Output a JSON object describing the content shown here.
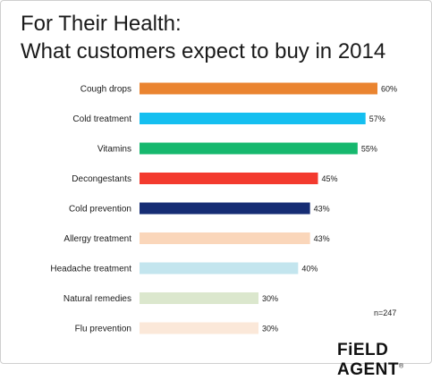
{
  "title_line1": "For Their Health:",
  "title_line2": "What customers expect to buy in 2014",
  "sample_size": "n=247",
  "logo_text": "FiELD AGENT",
  "logo_mark": "®",
  "chart_data": {
    "type": "bar",
    "orientation": "horizontal",
    "categories": [
      "Cough drops",
      "Cold treatment",
      "Vitamins",
      "Decongestants",
      "Cold prevention",
      "Allergy treatment",
      "Headache treatment",
      "Natural remedies",
      "Flu prevention"
    ],
    "values": [
      60,
      57,
      55,
      45,
      43,
      43,
      40,
      30,
      30
    ],
    "value_labels": [
      "60%",
      "57%",
      "55%",
      "45%",
      "43%",
      "43%",
      "40%",
      "30%",
      "30%"
    ],
    "colors": [
      "#ea8430",
      "#15bff0",
      "#16b86e",
      "#f33a2e",
      "#162d74",
      "#fad6ba",
      "#c3e5ee",
      "#dbe7cd",
      "#fbe8d9"
    ],
    "title": "For Their Health: What customers expect to buy in 2014",
    "xlabel": "",
    "ylabel": "",
    "xlim": [
      0,
      60
    ],
    "grid": false,
    "legend": "none"
  }
}
